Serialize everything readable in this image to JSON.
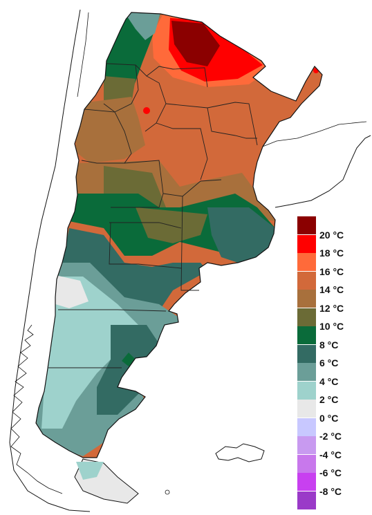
{
  "legend": {
    "classes": [
      {
        "color": "#8b0000"
      },
      {
        "color": "#ff0000",
        "label": "20 °C"
      },
      {
        "color": "#ff6a3a",
        "label": "18 °C"
      },
      {
        "color": "#d2693a",
        "label": "16 °C"
      },
      {
        "color": "#a8703c",
        "label": "14 °C"
      },
      {
        "color": "#6b6b36",
        "label": "12 °C"
      },
      {
        "color": "#0a6b3a",
        "label": "10 °C"
      },
      {
        "color": "#336b63",
        "label": "8 °C"
      },
      {
        "color": "#6b9e98",
        "label": "6 °C"
      },
      {
        "color": "#9ed2cc",
        "label": "4 °C"
      },
      {
        "color": "#e8e8e8",
        "label": "2 °C"
      },
      {
        "color": "#c8c8ff",
        "label": "0 °C"
      },
      {
        "color": "#c89af0",
        "label": "-2 °C"
      },
      {
        "color": "#c878ec",
        "label": "-4 °C"
      },
      {
        "color": "#c840f0",
        "label": "-6 °C"
      },
      {
        "color": "#9a3ac8",
        "label": "-8 °C"
      }
    ]
  },
  "colors": {
    "background": "#ffffff",
    "outline": "#111111",
    "province_lines": "#222222"
  }
}
